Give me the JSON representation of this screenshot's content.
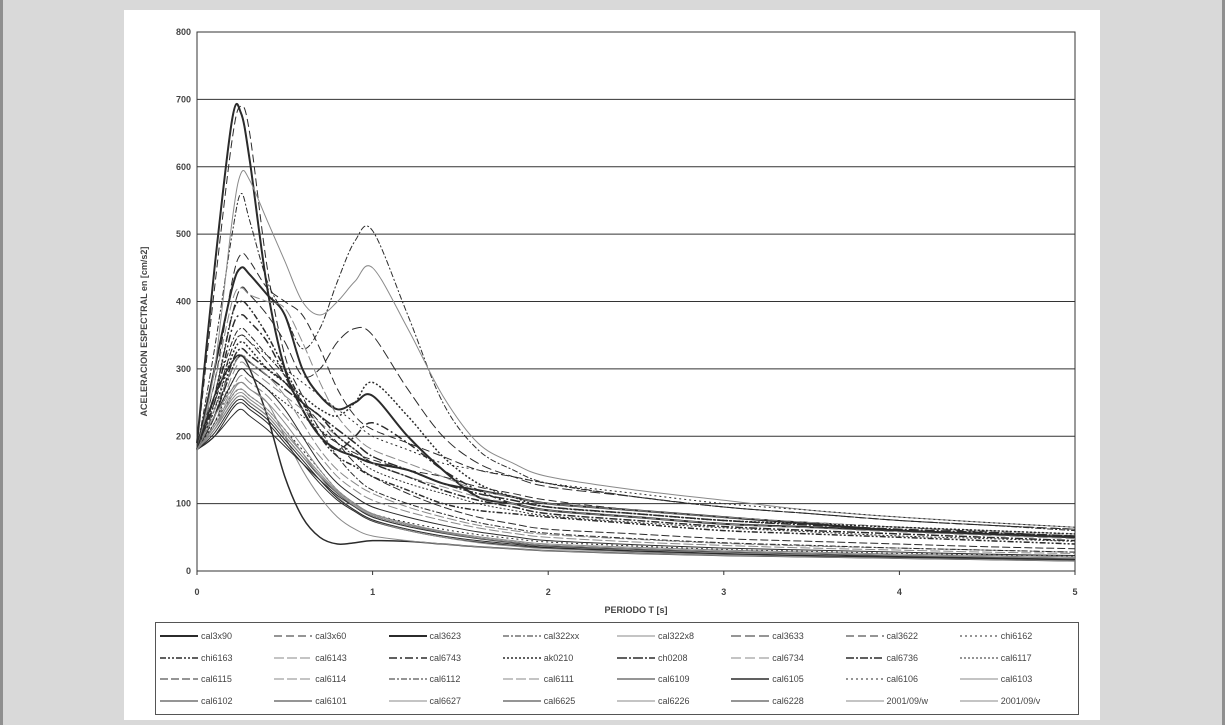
{
  "chart_data": {
    "type": "line",
    "title": "",
    "xlabel": "PERIODO T [s]",
    "ylabel": "ACELERACION ESPECTRAL en [cm/s2]",
    "xlim": [
      0,
      5
    ],
    "ylim": [
      0,
      800
    ],
    "x_ticks": [
      "0",
      "1",
      "2",
      "3",
      "4",
      "5"
    ],
    "y_ticks": [
      "0",
      "100",
      "200",
      "300",
      "400",
      "500",
      "600",
      "700",
      "800"
    ],
    "grid": "horizontal",
    "legend_position": "bottom",
    "x": [
      0,
      0.1,
      0.2,
      0.25,
      0.3,
      0.4,
      0.5,
      0.6,
      0.7,
      0.8,
      0.9,
      1.0,
      1.2,
      1.4,
      1.6,
      1.8,
      2.0,
      2.5,
      3.0,
      3.5,
      4.0,
      4.5,
      5.0
    ],
    "series": [
      {
        "name": "cal3x90",
        "values": [
          190,
          450,
          670,
          680,
          610,
          420,
          300,
          240,
          200,
          180,
          170,
          160,
          150,
          130,
          120,
          110,
          100,
          90,
          80,
          70,
          60,
          55,
          50
        ]
      },
      {
        "name": "cal3x60",
        "values": [
          185,
          420,
          640,
          690,
          650,
          450,
          320,
          260,
          210,
          190,
          175,
          165,
          150,
          140,
          125,
          115,
          105,
          90,
          80,
          72,
          65,
          58,
          52
        ]
      },
      {
        "name": "cal3623",
        "values": [
          180,
          300,
          420,
          450,
          440,
          410,
          380,
          300,
          260,
          240,
          250,
          260,
          200,
          150,
          110,
          100,
          90,
          80,
          70,
          65,
          60,
          55,
          50
        ]
      },
      {
        "name": "cal322xx",
        "values": [
          180,
          330,
          500,
          560,
          520,
          430,
          380,
          330,
          360,
          430,
          490,
          505,
          380,
          250,
          180,
          150,
          130,
          110,
          95,
          85,
          75,
          68,
          60
        ]
      },
      {
        "name": "cal322x8",
        "values": [
          180,
          300,
          520,
          590,
          580,
          520,
          460,
          400,
          380,
          400,
          430,
          450,
          360,
          260,
          190,
          160,
          140,
          120,
          105,
          90,
          80,
          72,
          65
        ]
      },
      {
        "name": "cal3633",
        "values": [
          180,
          260,
          380,
          420,
          410,
          380,
          340,
          290,
          300,
          340,
          360,
          350,
          270,
          200,
          160,
          140,
          125,
          110,
          95,
          85,
          75,
          68,
          62
        ]
      },
      {
        "name": "cal3622",
        "values": [
          180,
          280,
          430,
          470,
          460,
          420,
          400,
          380,
          330,
          270,
          230,
          210,
          190,
          170,
          150,
          140,
          130,
          110,
          95,
          85,
          75,
          68,
          62
        ]
      },
      {
        "name": "chi6162",
        "values": [
          180,
          240,
          330,
          350,
          340,
          320,
          300,
          280,
          260,
          240,
          220,
          200,
          180,
          160,
          150,
          140,
          130,
          115,
          100,
          90,
          80,
          72,
          65
        ]
      },
      {
        "name": "chi6163",
        "values": [
          180,
          260,
          380,
          400,
          390,
          350,
          300,
          250,
          200,
          170,
          155,
          140,
          120,
          100,
          90,
          85,
          80,
          70,
          60,
          55,
          50,
          45,
          40
        ]
      },
      {
        "name": "cal6143",
        "values": [
          180,
          280,
          400,
          420,
          410,
          400,
          390,
          340,
          280,
          230,
          200,
          180,
          160,
          140,
          120,
          110,
          100,
          90,
          80,
          72,
          65,
          60,
          55
        ]
      },
      {
        "name": "cal6743",
        "values": [
          180,
          250,
          360,
          380,
          370,
          340,
          290,
          240,
          200,
          180,
          200,
          220,
          190,
          150,
          120,
          100,
          90,
          80,
          70,
          65,
          60,
          55,
          50
        ]
      },
      {
        "name": "ak0210",
        "values": [
          180,
          240,
          320,
          340,
          330,
          300,
          280,
          260,
          240,
          230,
          250,
          280,
          230,
          170,
          130,
          110,
          95,
          85,
          75,
          70,
          65,
          60,
          55
        ]
      },
      {
        "name": "ch0208",
        "values": [
          180,
          230,
          300,
          320,
          310,
          290,
          270,
          250,
          230,
          210,
          190,
          170,
          150,
          130,
          115,
          105,
          95,
          85,
          75,
          68,
          62,
          57,
          52
        ]
      },
      {
        "name": "cal6734",
        "values": [
          180,
          220,
          290,
          310,
          300,
          280,
          260,
          240,
          220,
          200,
          180,
          160,
          140,
          125,
          110,
          100,
          90,
          80,
          70,
          64,
          58,
          53,
          48
        ]
      },
      {
        "name": "cal6736",
        "values": [
          180,
          230,
          310,
          330,
          320,
          300,
          280,
          250,
          230,
          200,
          180,
          160,
          140,
          120,
          105,
          95,
          85,
          75,
          66,
          60,
          55,
          50,
          45
        ]
      },
      {
        "name": "cal6117",
        "values": [
          180,
          220,
          280,
          300,
          290,
          270,
          250,
          230,
          210,
          190,
          170,
          150,
          130,
          115,
          100,
          90,
          82,
          72,
          64,
          58,
          52,
          48,
          44
        ]
      },
      {
        "name": "cal6115",
        "values": [
          180,
          250,
          330,
          350,
          340,
          310,
          280,
          250,
          220,
          190,
          160,
          140,
          115,
          95,
          80,
          70,
          62,
          55,
          48,
          44,
          40,
          36,
          33
        ]
      },
      {
        "name": "cal6114",
        "values": [
          180,
          240,
          300,
          320,
          310,
          290,
          260,
          220,
          180,
          150,
          130,
          115,
          95,
          80,
          68,
          60,
          54,
          47,
          41,
          37,
          34,
          31,
          28
        ]
      },
      {
        "name": "cal6112",
        "values": [
          180,
          260,
          340,
          360,
          350,
          320,
          290,
          250,
          210,
          170,
          140,
          120,
          100,
          85,
          72,
          63,
          56,
          48,
          42,
          38,
          34,
          31,
          28
        ]
      },
      {
        "name": "cal6111",
        "values": [
          180,
          220,
          270,
          290,
          280,
          260,
          230,
          200,
          170,
          140,
          120,
          105,
          88,
          75,
          64,
          56,
          50,
          43,
          38,
          34,
          31,
          28,
          26
        ]
      },
      {
        "name": "cal6109",
        "values": [
          180,
          230,
          280,
          300,
          290,
          270,
          240,
          200,
          160,
          130,
          110,
          95,
          80,
          68,
          58,
          51,
          45,
          39,
          34,
          31,
          28,
          25,
          23
        ]
      },
      {
        "name": "cal6105",
        "values": [
          180,
          260,
          310,
          320,
          300,
          230,
          140,
          80,
          50,
          40,
          42,
          45,
          44,
          40,
          36,
          33,
          30,
          26,
          23,
          21,
          19,
          17,
          15
        ]
      },
      {
        "name": "cal6106",
        "values": [
          180,
          220,
          260,
          270,
          260,
          240,
          210,
          180,
          150,
          120,
          100,
          85,
          72,
          62,
          54,
          48,
          43,
          37,
          32,
          29,
          26,
          24,
          22
        ]
      },
      {
        "name": "cal6103",
        "values": [
          180,
          230,
          270,
          280,
          270,
          250,
          200,
          150,
          110,
          80,
          62,
          52,
          45,
          40,
          36,
          33,
          30,
          26,
          23,
          21,
          19,
          17,
          15
        ]
      },
      {
        "name": "cal6102",
        "values": [
          180,
          210,
          250,
          260,
          250,
          230,
          200,
          170,
          140,
          115,
          95,
          80,
          66,
          56,
          48,
          42,
          37,
          32,
          28,
          25,
          22,
          20,
          18
        ]
      },
      {
        "name": "cal6101",
        "values": [
          180,
          200,
          240,
          250,
          240,
          220,
          190,
          160,
          130,
          105,
          88,
          74,
          60,
          50,
          43,
          38,
          34,
          29,
          25,
          22,
          20,
          18,
          16
        ]
      },
      {
        "name": "cal6627",
        "values": [
          180,
          210,
          260,
          270,
          260,
          240,
          210,
          175,
          140,
          110,
          90,
          75,
          60,
          50,
          42,
          37,
          33,
          28,
          24,
          21,
          19,
          17,
          15
        ]
      },
      {
        "name": "cal6625",
        "values": [
          180,
          205,
          245,
          255,
          245,
          225,
          195,
          165,
          135,
          108,
          90,
          76,
          62,
          52,
          45,
          40,
          35,
          30,
          26,
          23,
          21,
          19,
          17
        ]
      },
      {
        "name": "cal6226",
        "values": [
          180,
          215,
          265,
          280,
          270,
          250,
          220,
          185,
          150,
          120,
          100,
          85,
          70,
          58,
          49,
          43,
          38,
          33,
          29,
          26,
          23,
          21,
          19
        ]
      },
      {
        "name": "cal6228",
        "values": [
          180,
          200,
          230,
          240,
          230,
          210,
          185,
          160,
          135,
          112,
          95,
          82,
          68,
          57,
          49,
          43,
          38,
          33,
          29,
          26,
          23,
          21,
          19
        ]
      },
      {
        "name": "2001/09/w",
        "values": [
          180,
          215,
          255,
          265,
          255,
          235,
          205,
          175,
          145,
          118,
          98,
          84,
          70,
          59,
          51,
          45,
          40,
          35,
          31,
          28,
          25,
          23,
          21
        ]
      },
      {
        "name": "2001/09/v",
        "values": [
          180,
          210,
          250,
          260,
          250,
          230,
          200,
          170,
          142,
          116,
          96,
          82,
          68,
          57,
          49,
          43,
          38,
          33,
          29,
          26,
          23,
          21,
          19
        ]
      }
    ]
  },
  "styles": {
    "line_color": "#2b2b2b",
    "light_color": "#8a8a8a",
    "grid_color": "#333333",
    "frame_color": "#8f8f8f"
  }
}
